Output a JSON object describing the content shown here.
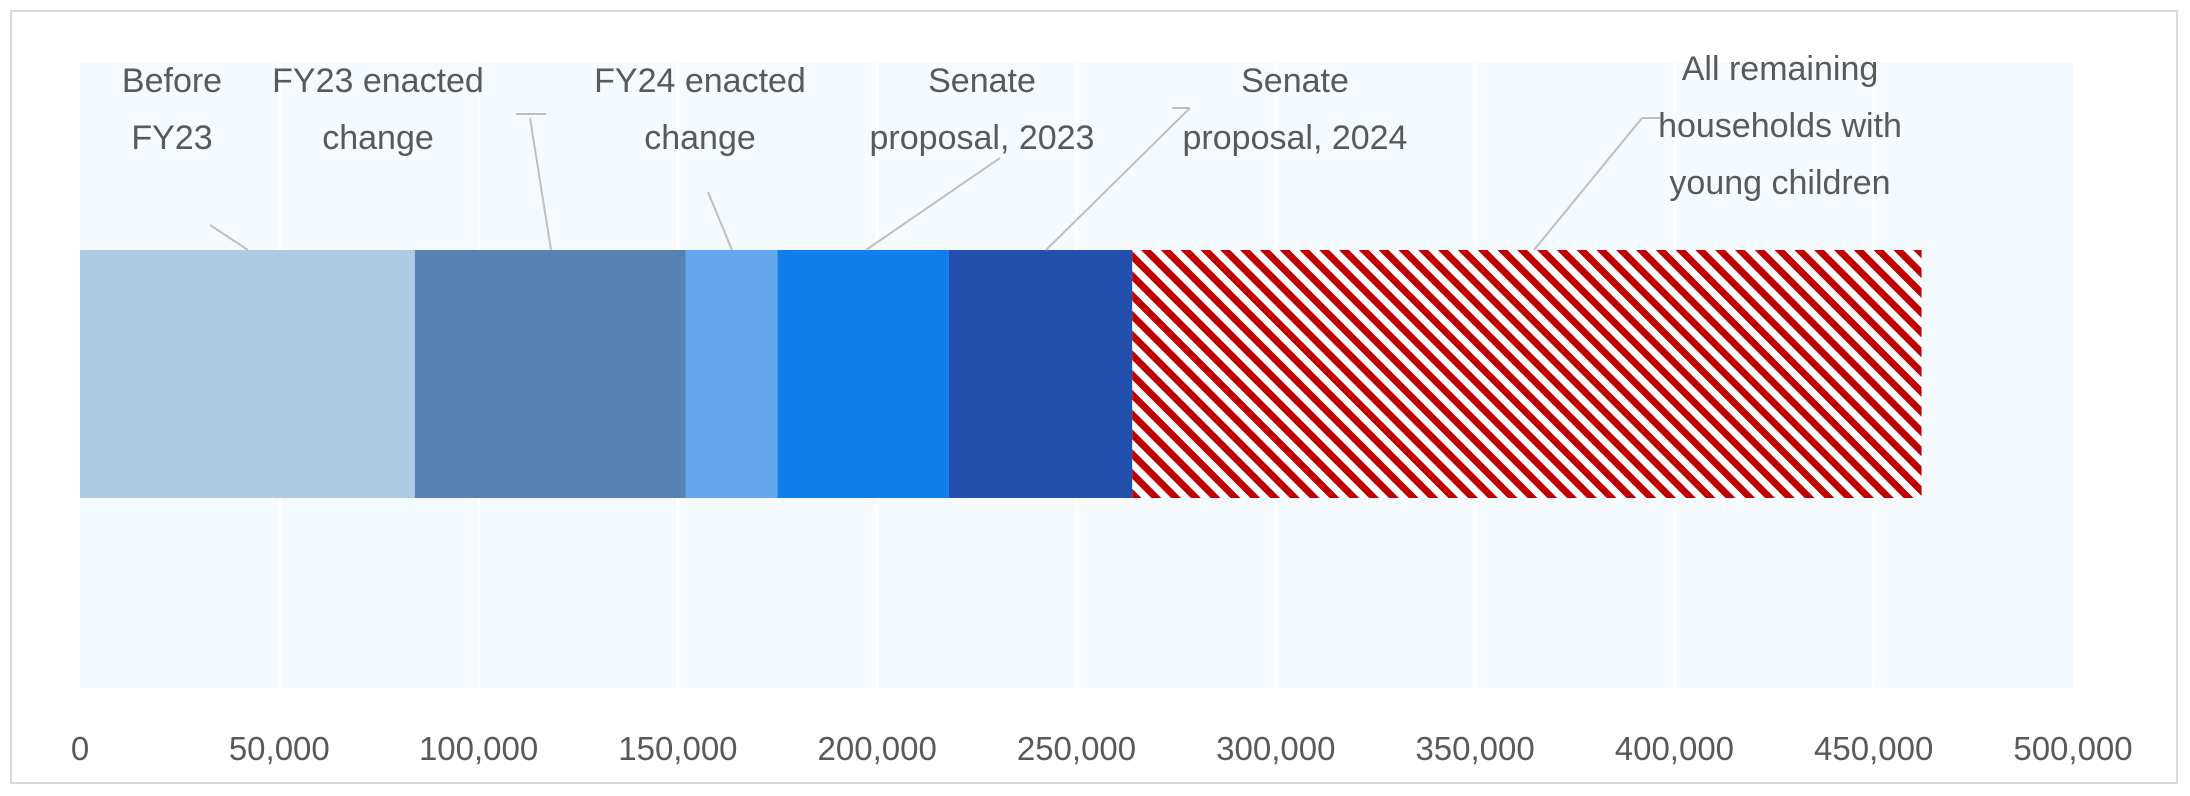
{
  "chart_data": {
    "type": "bar",
    "orientation": "horizontal",
    "stacked": true,
    "categories": [
      ""
    ],
    "series": [
      {
        "name": "Before FY23",
        "values": [
          84000
        ],
        "color": "#adcbe3"
      },
      {
        "name": "FY23 enacted change",
        "values": [
          68000
        ],
        "color": "#5683b4"
      },
      {
        "name": "FY24 enacted change",
        "values": [
          23000
        ],
        "color": "#63a8ec"
      },
      {
        "name": "Senate proposal, 2023",
        "values": [
          43000
        ],
        "color": "#127eeb"
      },
      {
        "name": "Senate proposal, 2024",
        "values": [
          46000
        ],
        "color": "#2450ad"
      },
      {
        "name": "All remaining households with young children",
        "values": [
          198000
        ],
        "color": "#c00000",
        "pattern": "diagonal-hatch"
      }
    ],
    "annotation_lines": [
      [
        "Before",
        "FY23"
      ],
      [
        "FY23 enacted",
        "change"
      ],
      [
        "FY24 enacted",
        "change"
      ],
      [
        "Senate",
        "proposal, 2023"
      ],
      [
        "Senate",
        "proposal, 2024"
      ],
      [
        "All remaining",
        "households with",
        "young children"
      ]
    ],
    "xlim": [
      0,
      500000
    ],
    "xticks": [
      "0",
      "50,000",
      "100,000",
      "150,000",
      "200,000",
      "250,000",
      "300,000",
      "350,000",
      "400,000",
      "450,000",
      "500,000"
    ],
    "grid": true,
    "plot_background": "#f5fafe",
    "legend": "none",
    "title": "",
    "xlabel": "",
    "ylabel": ""
  }
}
